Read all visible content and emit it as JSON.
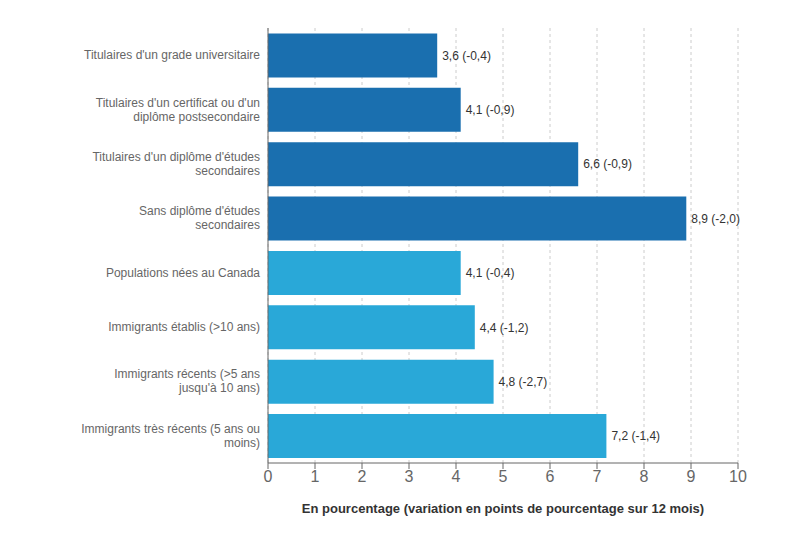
{
  "chart_data": {
    "type": "bar",
    "orientation": "horizontal",
    "categories": [
      "Immigrants très récents (5 ans ou\nmoins)",
      "Immigrants récents (>5 ans\njusqu'à 10 ans)",
      "Immigrants établis (>10 ans)",
      "Populations nées au Canada",
      "Sans diplôme d'études\nsecondaires",
      "Titulaires d'un diplôme d'études\nsecondaires",
      "Titulaires d'un certificat ou d'un\ndiplôme postsecondaire",
      "Titulaires d'un grade universitaire"
    ],
    "values": [
      7.2,
      4.8,
      4.4,
      4.1,
      8.9,
      6.6,
      4.1,
      3.6
    ],
    "value_labels": [
      "7,2 (-1,4)",
      "4,8 (-2,7)",
      "4,4 (-1,2)",
      "4,1 (-0,4)",
      "8,9 (-2,0)",
      "6,6 (-0,9)",
      "4,1 (-0,9)",
      "3,6 (-0,4)"
    ],
    "colors": [
      "#29a8d8",
      "#29a8d8",
      "#29a8d8",
      "#29a8d8",
      "#1a6faf",
      "#1a6faf",
      "#1a6faf",
      "#1a6faf"
    ],
    "xlabel": "En pourcentage (variation en points de pourcentage sur 12 mois)",
    "xlim": [
      0,
      10
    ],
    "xticks": [
      0,
      1,
      2,
      3,
      4,
      5,
      6,
      7,
      8,
      9,
      10
    ],
    "grid": true,
    "data_labels": true
  }
}
